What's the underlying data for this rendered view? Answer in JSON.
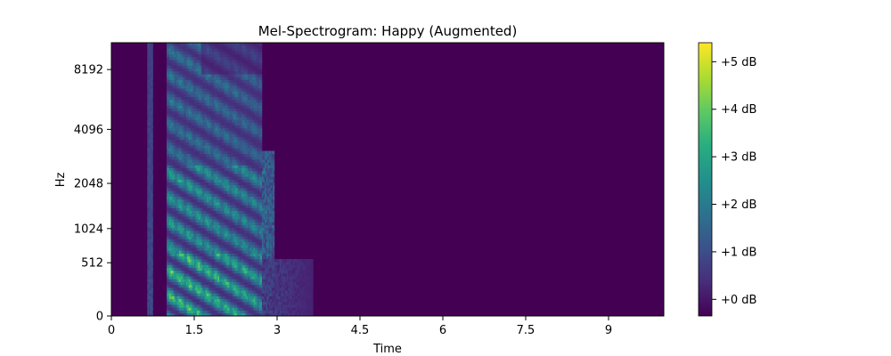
{
  "chart_data": {
    "type": "heatmap",
    "title": "Mel-Spectrogram: Happy (Augmented)",
    "xlabel": "Time",
    "ylabel": "Hz",
    "xlim": [
      0,
      10
    ],
    "x_ticks": [
      {
        "value": 0,
        "label": "0"
      },
      {
        "value": 1.5,
        "label": "1.5"
      },
      {
        "value": 3,
        "label": "3"
      },
      {
        "value": 4.5,
        "label": "4.5"
      },
      {
        "value": 6,
        "label": "6"
      },
      {
        "value": 7.5,
        "label": "7.5"
      },
      {
        "value": 9,
        "label": "9"
      }
    ],
    "y_ticks": [
      {
        "value": 0,
        "label": "0"
      },
      {
        "value": 512,
        "label": "512"
      },
      {
        "value": 1024,
        "label": "1024"
      },
      {
        "value": 2048,
        "label": "2048"
      },
      {
        "value": 4096,
        "label": "4096"
      },
      {
        "value": 8192,
        "label": "8192"
      }
    ],
    "y_scale": "mel",
    "ylim": [
      0,
      11025
    ],
    "colorbar": {
      "colormap": "viridis",
      "range": [
        -0.35,
        5.4
      ],
      "ticks": [
        {
          "value": 0,
          "label": "+0 dB"
        },
        {
          "value": 1,
          "label": "+1 dB"
        },
        {
          "value": 2,
          "label": "+2 dB"
        },
        {
          "value": 3,
          "label": "+3 dB"
        },
        {
          "value": 4,
          "label": "+4 dB"
        },
        {
          "value": 5,
          "label": "+5 dB"
        }
      ]
    },
    "energy_region": {
      "time_start": 0.65,
      "main_start": 1.0,
      "main_end": 2.7,
      "tail_end": 3.65,
      "peak_db": 5.4
    },
    "background_color": "#440154"
  }
}
